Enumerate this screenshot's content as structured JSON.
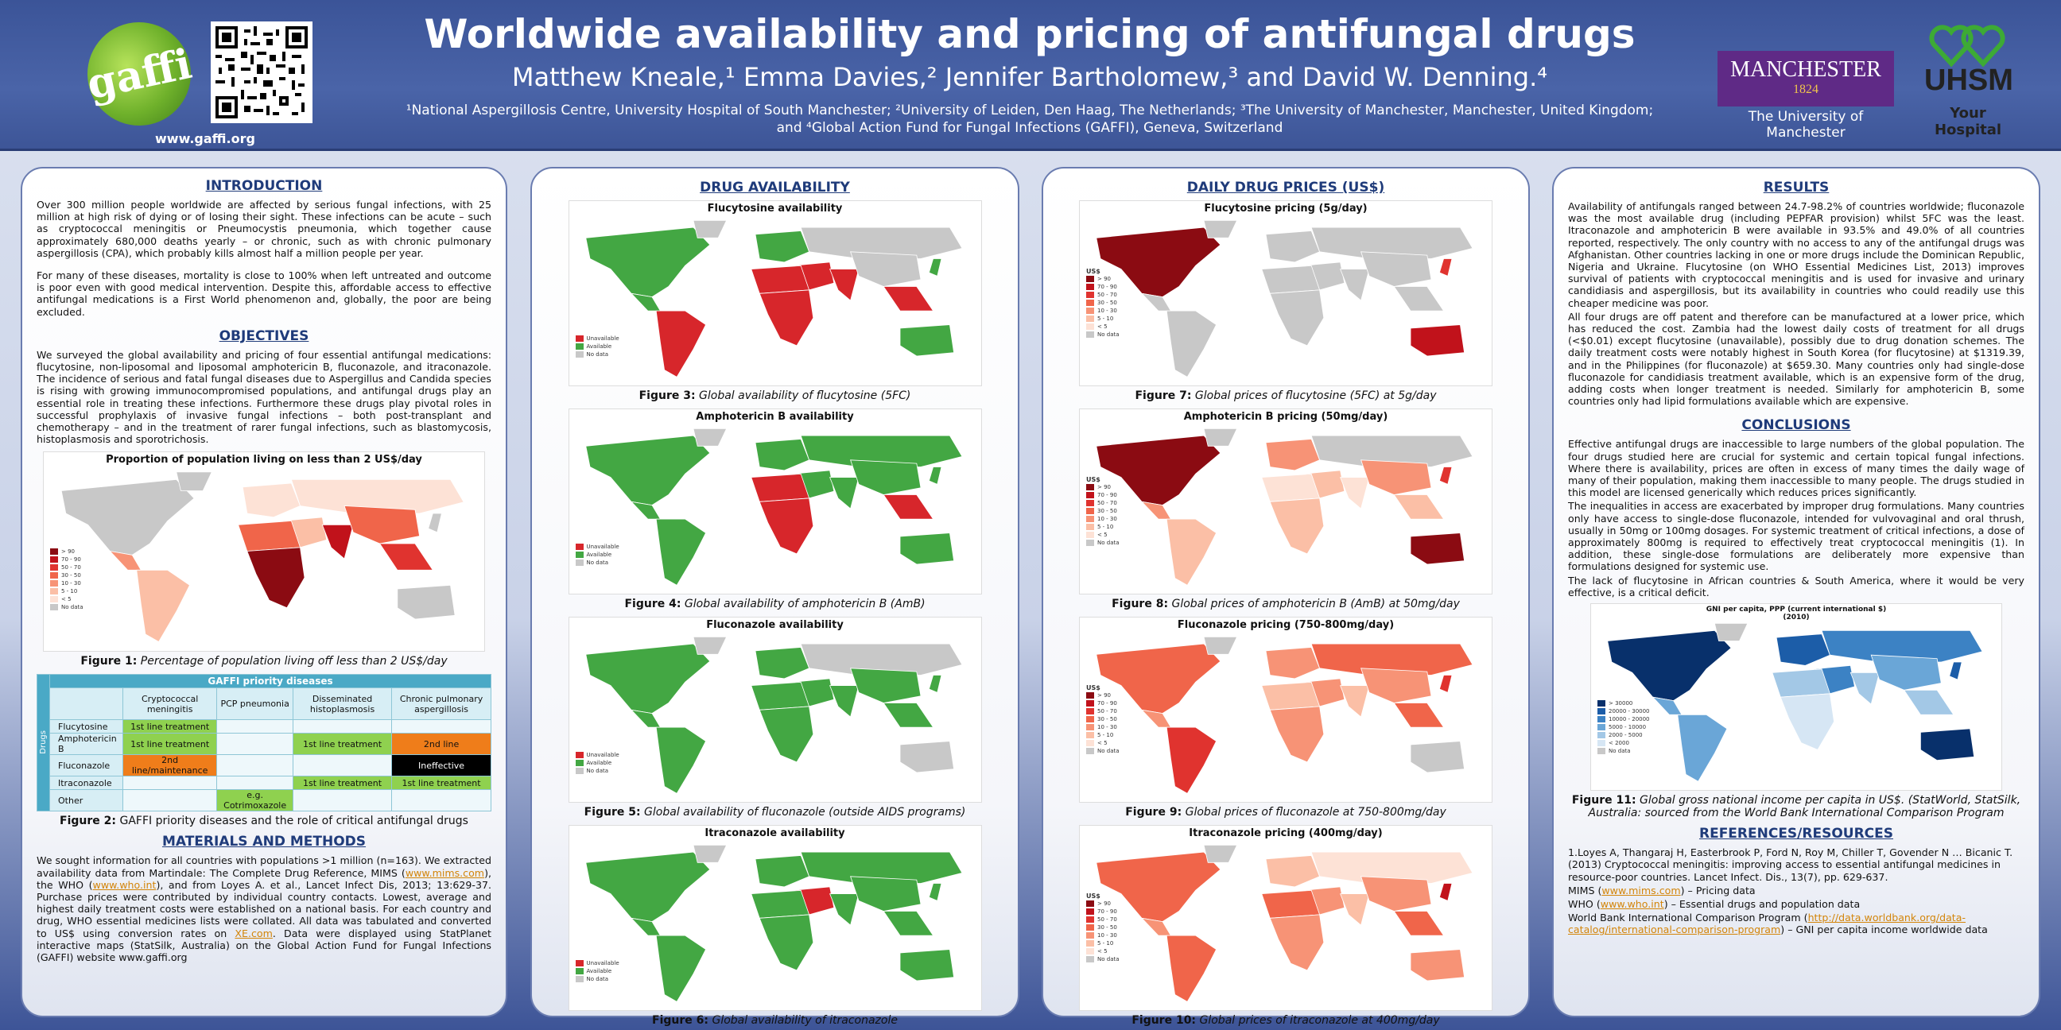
{
  "header": {
    "title": "Worldwide availability and pricing of antifungal drugs",
    "authors": "Matthew Kneale,¹ Emma Davies,² Jennifer Bartholomew,³ and David W. Denning.⁴",
    "affiliations": "¹National Aspergillosis Centre, University Hospital of South Manchester; ²University of Leiden, Den Haag, The Netherlands; ³The University of Manchester, Manchester, United Kingdom; and ⁴Global Action Fund for Fungal Infections (GAFFI), Geneva, Switzerland",
    "gaffi_logo": "gaffi",
    "gaffi_url": "www.gaffi.org",
    "manchester_logo": "MANCHESTER",
    "manchester_year": "1824",
    "manchester_sub": "The University of Manchester",
    "uhsm": "UHSM",
    "uhsm_sub": "Your Hospital"
  },
  "intro": {
    "heading": "INTRODUCTION",
    "p1": "Over 300 million people worldwide are affected by serious fungal infections, with 25 million at high risk of dying or of losing their sight. These infections can be acute – such as cryptococcal meningitis or Pneumocystis pneumonia, which together cause approximately 680,000 deaths yearly – or chronic, such as with chronic pulmonary aspergillosis (CPA), which probably kills almost half a million people per year.",
    "p2": "For many of these diseases, mortality is close to 100% when left untreated and outcome is poor even with good medical intervention. Despite this, affordable access to effective antifungal medications is a First World phenomenon and, globally, the poor are being excluded."
  },
  "objectives": {
    "heading": "OBJECTIVES",
    "p1": "We surveyed the global availability and pricing of four essential antifungal medications: flucytosine, non-liposomal and liposomal amphotericin B, fluconazole, and itraconazole. The incidence of serious and fatal fungal diseases due to Aspergillus and Candida species is rising with growing immunocompromised populations, and antifungal drugs play an essential role in treating these infections. Furthermore these drugs play pivotal roles in successful prophylaxis of invasive fungal infections – both post-transplant and chemotherapy – and in the treatment of rarer fungal infections, such as blastomycosis, histoplasmosis and sporotrichosis."
  },
  "fig1": {
    "title": "Proportion of population living on less than 2 US$/day",
    "caption_label": "Figure 1:",
    "caption_text": "Percentage of population living off less than 2 US$/day",
    "legend": [
      "> 90",
      "70 - 90",
      "50 - 70",
      "30 - 50",
      "10 - 30",
      "5 - 10",
      "< 5",
      "No data"
    ]
  },
  "table": {
    "title": "GAFFI priority diseases",
    "side_label": "Drugs",
    "columns": [
      "Cryptococcal meningitis",
      "PCP pneumonia",
      "Disseminated histoplasmosis",
      "Chronic pulmonary aspergillosis"
    ],
    "rows": [
      {
        "drug": "Flucytosine",
        "cells": [
          "1st line treatment",
          "",
          "",
          ""
        ]
      },
      {
        "drug": "Amphotericin B",
        "cells": [
          "1st line treatment",
          "",
          "1st line treatment",
          "2nd line"
        ]
      },
      {
        "drug": "Fluconazole",
        "cells": [
          "2nd line/maintenance",
          "",
          "",
          "Ineffective"
        ]
      },
      {
        "drug": "Itraconazole",
        "cells": [
          "",
          "",
          "1st line treatment",
          "1st line treatment"
        ]
      },
      {
        "drug": "Other",
        "cells": [
          "",
          "e.g. Cotrimoxazole",
          "",
          ""
        ]
      }
    ],
    "caption_label": "Figure 2:",
    "caption_text": "GAFFI priority diseases and the role of critical antifungal drugs"
  },
  "methods": {
    "heading": "MATERIALS AND METHODS",
    "p1a": "We sought information for all countries with populations >1 million (n=163). We extracted availability data from Martindale: The Complete Drug Reference, MIMS (",
    "link1": "www.mims.com",
    "p1b": "), the WHO (",
    "link2": "www.who.int",
    "p1c": "), and from Loyes A. et al., Lancet Infect Dis, 2013; 13:629-37. Purchase prices were contributed by individual country contacts. Lowest, average and highest daily treatment costs were established on a national basis. For each country and drug, WHO essential medicines lists were collated. All data was tabulated and converted to US$ using conversion rates on ",
    "link3": "XE.com",
    "p1d": ". Data were displayed using StatPlanet interactive maps (StatSilk, Australia) on the Global Action Fund for Fungal Infections (GAFFI) website www.gaffi.org"
  },
  "availability": {
    "heading": "DRUG AVAILABILITY",
    "legend": [
      "Unavailable",
      "Available",
      "No data"
    ],
    "maps": [
      {
        "title": "Flucytosine availability",
        "caption_label": "Figure 3:",
        "caption_text": "Global availability of flucytosine (5FC)"
      },
      {
        "title": "Amphotericin B availability",
        "caption_label": "Figure 4:",
        "caption_text": "Global availability of amphotericin B (AmB)"
      },
      {
        "title": "Fluconazole availability",
        "caption_label": "Figure 5:",
        "caption_text": "Global availability of fluconazole (outside AIDS programs)"
      },
      {
        "title": "Itraconazole availability",
        "caption_label": "Figure 6:",
        "caption_text": "Global availability of itraconazole"
      }
    ]
  },
  "prices": {
    "heading": "DAILY DRUG PRICES (US$)",
    "legend_title": "US$",
    "legend": [
      "> 90",
      "70 - 90",
      "50 - 70",
      "30 - 50",
      "10 - 30",
      "5 - 10",
      "< 5",
      "No data"
    ],
    "maps": [
      {
        "title": "Flucytosine pricing (5g/day)",
        "caption_label": "Figure 7:",
        "caption_text": "Global prices of flucytosine (5FC) at 5g/day"
      },
      {
        "title": "Amphotericin B pricing (50mg/day)",
        "caption_label": "Figure 8:",
        "caption_text": "Global prices of amphotericin B (AmB) at 50mg/day"
      },
      {
        "title": "Fluconazole pricing (750-800mg/day)",
        "caption_label": "Figure 9:",
        "caption_text": "Global prices of fluconazole at 750-800mg/day"
      },
      {
        "title": "Itraconazole pricing (400mg/day)",
        "caption_label": "Figure 10:",
        "caption_text": "Global prices of itraconazole at 400mg/day"
      }
    ]
  },
  "results": {
    "heading": "RESULTS",
    "p1": "Availability of antifungals ranged between 24.7-98.2% of countries worldwide; fluconazole was the most available drug (including PEPFAR provision) whilst 5FC was the least. Itraconazole and amphotericin B were available in 93.5% and 49.0% of all countries reported, respectively. The only country with no access to any of the antifungal drugs was Afghanistan. Other countries lacking in one or more drugs include the Dominican Republic, Nigeria and Ukraine. Flucytosine (on WHO Essential Medicines List, 2013) improves survival of patients with cryptococcal meningitis and is used for invasive and urinary candidiasis and aspergillosis, but its availability in countries who could readily use this cheaper medicine was poor.",
    "p2": "All four drugs are off patent and therefore can be manufactured at a lower price, which has reduced the cost. Zambia had the lowest daily costs of treatment for all drugs (<$0.01) except flucytosine (unavailable), possibly due to drug donation schemes. The daily treatment costs were notably highest in South Korea (for flucytosine) at $1319.39, and in the Philippines (for fluconazole) at $659.30. Many countries only had single-dose fluconazole for candidiasis treatment available, which is an expensive form of the drug, adding costs when longer treatment is needed. Similarly for amphotericin B, some countries only had lipid formulations available which are expensive."
  },
  "conclusions": {
    "heading": "CONCLUSIONS",
    "p1": "Effective antifungal drugs are inaccessible to large numbers of the global population. The four drugs studied here are crucial for systemic and certain topical fungal infections. Where there is availability, prices are often in excess of many times the daily wage of many of their population, making them inaccessible to many people. The drugs studied in this model are licensed generically which reduces  prices significantly.",
    "p2": "The inequalities in access are exacerbated by improper drug formulations. Many countries only have access to single-dose fluconazole, intended for vulvovaginal and oral thrush, usually in 50mg or 100mg dosages. For systemic treatment of critical infections, a dose of approximately 800mg is required to effectively treat cryptococcal meningitis (1). In addition, these single-dose formulations are deliberately more expensive than formulations designed for systemic use.",
    "p3": "The lack of flucytosine in African countries & South America, where it would be very effective, is a critical deficit."
  },
  "fig11": {
    "title": "GNI per capita, PPP (current international $)",
    "subtitle": "(2010)",
    "legend": [
      "> 30000",
      "20000 - 30000",
      "10000 - 20000",
      "5000 - 10000",
      "2000 - 5000",
      "< 2000",
      "No data"
    ],
    "caption_label": "Figure 11:",
    "caption_text": "Global gross national income per capita in US$. (StatWorld, StatSilk, Australia: sourced from the World Bank International Comparison Program"
  },
  "references": {
    "heading": "REFERENCES/RESOURCES",
    "r1": "1.Loyes A, Thangaraj H, Easterbrook P, Ford N, Roy M, Chiller T, Govender N … Bicanic T. (2013) Cryptococcal meningitis: improving access to essential antifungal medicines in resource-poor countries. Lancet Infect. Dis., 13(7), pp. 629-637.",
    "r2a": "MIMS (",
    "r2link": "www.mims.com",
    "r2b": ") – Pricing data",
    "r3a": "WHO (",
    "r3link": "www.who.int",
    "r3b": ") – Essential drugs and population data",
    "r4a": "World Bank International Comparison Program (",
    "r4link": "http://data.worldbank.org/data-catalog/international-comparison-program",
    "r4b": ") – GNI per capita income worldwide data"
  },
  "colors": {
    "header_blue": "#3b5498",
    "unavailable_red": "#d7262b",
    "available_green": "#43a743",
    "nodata_grey": "#c8c8c8",
    "table_teal": "#4aa9c6",
    "table_green": "#8fd14f",
    "table_orange": "#ef7d1a",
    "link_orange": "#d3850a",
    "manchester_purple": "#5f2a86",
    "uhsm_green": "#3daa35"
  }
}
